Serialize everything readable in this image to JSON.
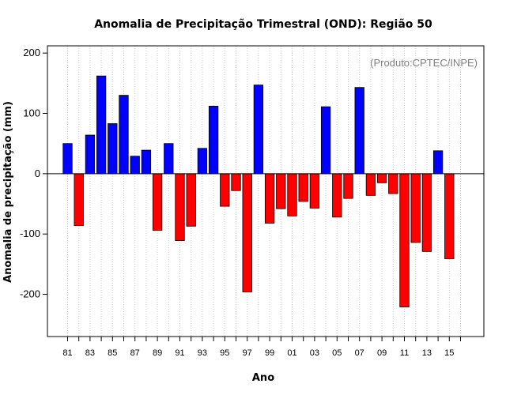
{
  "chart_data": {
    "type": "bar",
    "title": "Anomalia de Precipitação Trimestral (OND): Região 50",
    "xlabel": "Ano",
    "ylabel": "Anomalia de precipitação (mm)",
    "annotation": "(Produto:CPTEC/INPE)",
    "ylim": [
      -270,
      212
    ],
    "yticks": [
      200,
      100,
      0,
      -100,
      -200
    ],
    "grid": "vertical-dotted",
    "positive_color": "#0000ff",
    "negative_color": "#ff0000",
    "x_tick_labels": [
      "81",
      "83",
      "85",
      "87",
      "89",
      "91",
      "93",
      "95",
      "97",
      "99",
      "01",
      "03",
      "05",
      "07",
      "09",
      "11",
      "13",
      "15"
    ],
    "categories": [
      "1981",
      "1982",
      "1983",
      "1984",
      "1985",
      "1986",
      "1987",
      "1988",
      "1989",
      "1990",
      "1991",
      "1992",
      "1993",
      "1994",
      "1995",
      "1996",
      "1997",
      "1998",
      "1999",
      "2000",
      "2001",
      "2002",
      "2003",
      "2004",
      "2005",
      "2006",
      "2007",
      "2008",
      "2009",
      "2010",
      "2011",
      "2012",
      "2013",
      "2014",
      "2015"
    ],
    "values": [
      50,
      -86,
      64,
      162,
      83,
      130,
      29,
      39,
      -94,
      50,
      -111,
      -87,
      42,
      112,
      -54,
      -28,
      -196,
      147,
      -82,
      -58,
      -70,
      -46,
      -57,
      111,
      -72,
      -41,
      143,
      -36,
      -15,
      -33,
      -221,
      -114,
      -129,
      38,
      -141
    ]
  }
}
